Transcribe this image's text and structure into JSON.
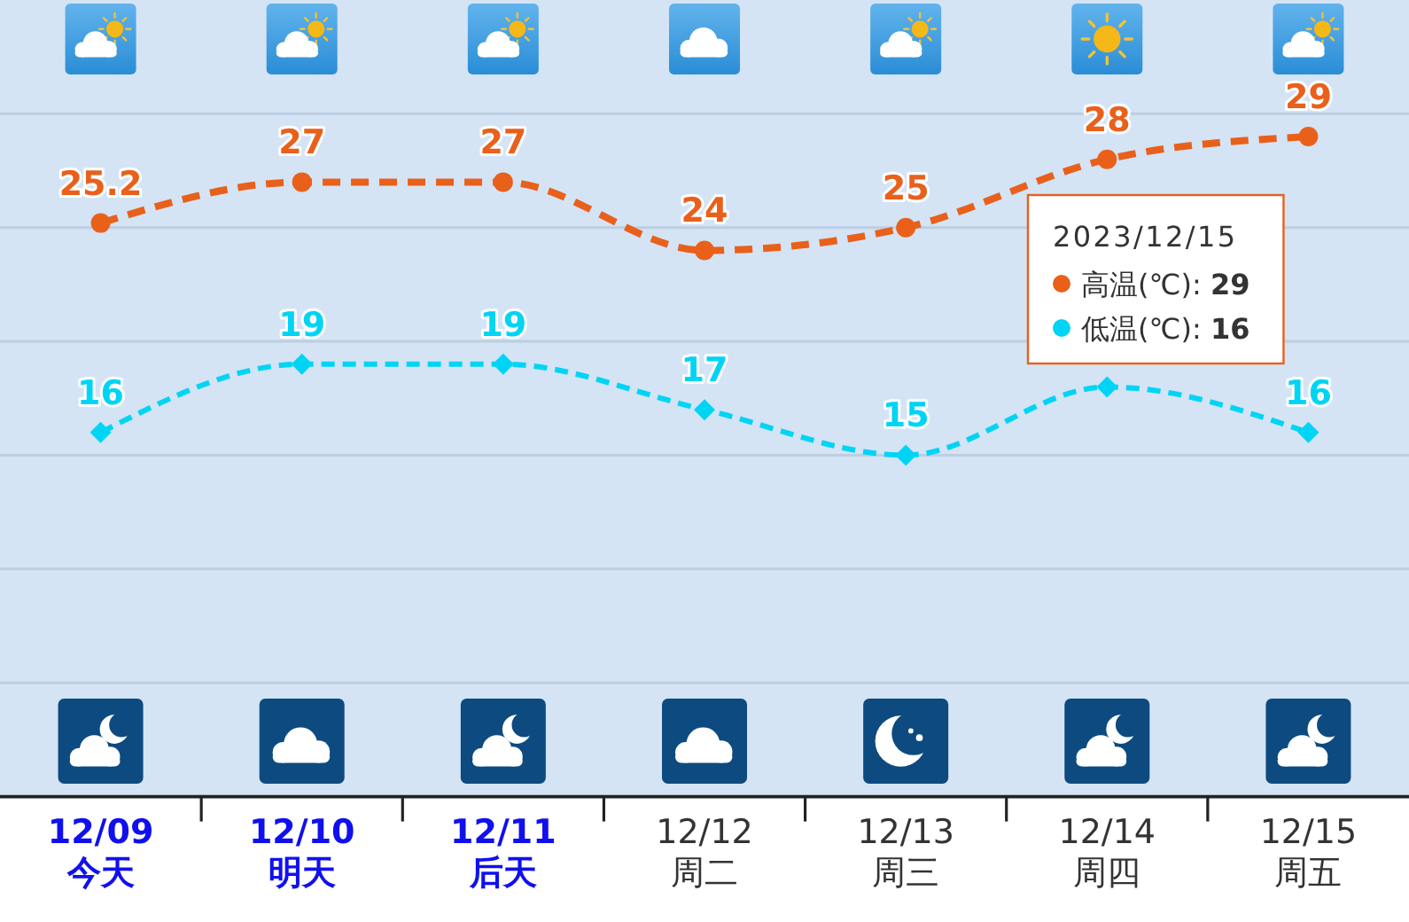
{
  "chart_data": {
    "type": "line",
    "categories": [
      "12/09\n今天",
      "12/10\n明天",
      "12/11\n后天",
      "12/12\n周二",
      "12/13\n周三",
      "12/14\n周四",
      "12/15\n周五"
    ],
    "series": [
      {
        "name": "高温(℃): **29**",
        "color": "#e9601b",
        "values": [
          25.2,
          27,
          27,
          24,
          25,
          28,
          29
        ],
        "value_labels": [
          "25.2",
          "27",
          "27",
          "24",
          "25",
          "28",
          "29"
        ],
        "marker": "circle",
        "line_style": "dashed"
      },
      {
        "name": "低温(℃): **16**",
        "color": "#00d4f5",
        "values": [
          16,
          19,
          19,
          17,
          15,
          18,
          16
        ],
        "value_labels": [
          "16",
          "19",
          "19",
          "17",
          "15",
          null,
          "16"
        ],
        "marker": "diamond",
        "line_style": "dashed"
      }
    ],
    "ylim": [
      0,
      35
    ],
    "yticks": [
      {
        "value": 0,
        "label": null
      },
      {
        "value": 5,
        "label": null
      },
      {
        "value": 10,
        "label": null
      },
      {
        "value": 15,
        "label": null
      },
      {
        "value": 20,
        "label": null
      },
      {
        "value": 25,
        "label": null
      },
      {
        "value": 30,
        "label": null
      }
    ],
    "grid": "y",
    "tick_labels": "x",
    "legend": "top right",
    "legend_title": "2023/12/15"
  }
}
